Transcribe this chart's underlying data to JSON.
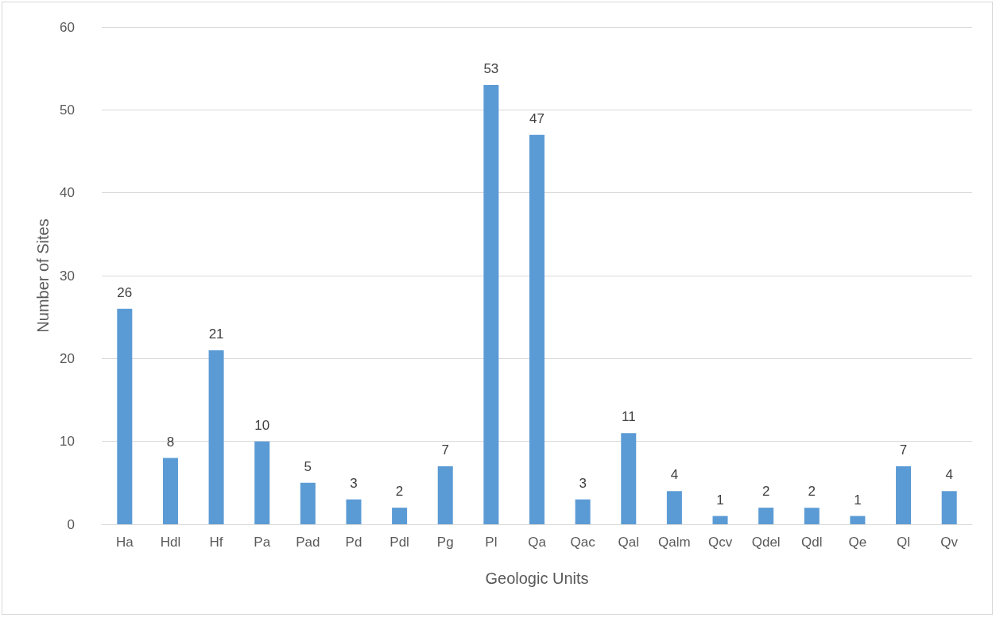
{
  "chart_data": {
    "type": "bar",
    "xlabel": "Geologic Units",
    "ylabel": "Number of Sites",
    "categories": [
      "Ha",
      "Hdl",
      "Hf",
      "Pa",
      "Pad",
      "Pd",
      "Pdl",
      "Pg",
      "Pl",
      "Qa",
      "Qac",
      "Qal",
      "Qalm",
      "Qcv",
      "Qdel",
      "Qdl",
      "Qe",
      "Ql",
      "Qv"
    ],
    "values": [
      26,
      8,
      21,
      10,
      5,
      3,
      2,
      7,
      53,
      47,
      3,
      11,
      4,
      1,
      2,
      2,
      1,
      7,
      4
    ],
    "color": "#5b9bd5",
    "ylim": [
      0,
      60
    ],
    "yticks": [
      0,
      10,
      20,
      30,
      40,
      50,
      60
    ],
    "grid": "y",
    "data_labels": true
  }
}
